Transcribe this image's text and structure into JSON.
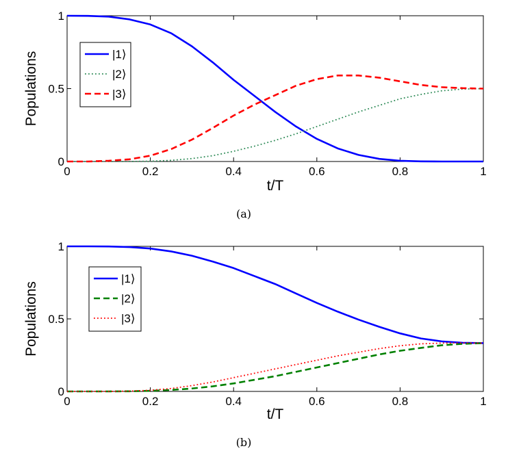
{
  "chart_data": [
    {
      "type": "line",
      "caption": "(a)",
      "xlabel": "t/T",
      "ylabel": "Populations",
      "xlim": [
        0,
        1
      ],
      "ylim": [
        0,
        1
      ],
      "xticks": [
        "0",
        "0.2",
        "0.4",
        "0.6",
        "0.8",
        "1"
      ],
      "yticks": [
        "0",
        "0.5",
        "1"
      ],
      "legend_position": "upper-left",
      "series": [
        {
          "name": "|1⟩",
          "style": "solid",
          "color": "#0000ff",
          "x": [
            0,
            0.05,
            0.1,
            0.15,
            0.2,
            0.25,
            0.3,
            0.35,
            0.4,
            0.45,
            0.5,
            0.55,
            0.6,
            0.65,
            0.7,
            0.75,
            0.8,
            0.85,
            0.9,
            0.95,
            1.0
          ],
          "values": [
            1.0,
            0.999,
            0.994,
            0.975,
            0.94,
            0.88,
            0.79,
            0.68,
            0.56,
            0.45,
            0.34,
            0.24,
            0.155,
            0.09,
            0.045,
            0.018,
            0.005,
            0.001,
            0.0,
            0.0,
            0.0
          ]
        },
        {
          "name": "|2⟩",
          "style": "dotted",
          "color": "#2e8b57",
          "x": [
            0,
            0.05,
            0.1,
            0.15,
            0.2,
            0.25,
            0.3,
            0.35,
            0.4,
            0.45,
            0.5,
            0.55,
            0.6,
            0.65,
            0.7,
            0.75,
            0.8,
            0.85,
            0.9,
            0.95,
            1.0
          ],
          "values": [
            0.0,
            0.0,
            0.0,
            0.0,
            0.002,
            0.008,
            0.02,
            0.04,
            0.07,
            0.105,
            0.145,
            0.19,
            0.24,
            0.29,
            0.34,
            0.385,
            0.43,
            0.46,
            0.485,
            0.497,
            0.5
          ]
        },
        {
          "name": "|3⟩",
          "style": "dashed",
          "color": "#ff0000",
          "x": [
            0,
            0.05,
            0.1,
            0.15,
            0.2,
            0.25,
            0.3,
            0.35,
            0.4,
            0.45,
            0.5,
            0.55,
            0.6,
            0.65,
            0.7,
            0.75,
            0.8,
            0.85,
            0.9,
            0.95,
            1.0
          ],
          "values": [
            0.0,
            0.0,
            0.005,
            0.015,
            0.04,
            0.085,
            0.15,
            0.23,
            0.315,
            0.39,
            0.455,
            0.52,
            0.565,
            0.59,
            0.59,
            0.575,
            0.55,
            0.525,
            0.51,
            0.503,
            0.5
          ]
        }
      ]
    },
    {
      "type": "line",
      "caption": "(b)",
      "xlabel": "t/T",
      "ylabel": "Populations",
      "xlim": [
        0,
        1
      ],
      "ylim": [
        0,
        1
      ],
      "xticks": [
        "0",
        "0.2",
        "0.4",
        "0.6",
        "0.8",
        "1"
      ],
      "yticks": [
        "0",
        "0.5",
        "1"
      ],
      "legend_position": "upper-left",
      "series": [
        {
          "name": "|1⟩",
          "style": "solid",
          "color": "#0000ff",
          "x": [
            0,
            0.05,
            0.1,
            0.15,
            0.2,
            0.25,
            0.3,
            0.35,
            0.4,
            0.45,
            0.5,
            0.55,
            0.6,
            0.65,
            0.7,
            0.75,
            0.8,
            0.85,
            0.9,
            0.95,
            1.0
          ],
          "values": [
            1.0,
            1.0,
            0.999,
            0.995,
            0.985,
            0.965,
            0.935,
            0.895,
            0.85,
            0.795,
            0.74,
            0.675,
            0.61,
            0.55,
            0.495,
            0.445,
            0.4,
            0.365,
            0.345,
            0.335,
            0.333
          ]
        },
        {
          "name": "|2⟩",
          "style": "dashed",
          "color": "#008000",
          "x": [
            0,
            0.05,
            0.1,
            0.15,
            0.2,
            0.25,
            0.3,
            0.35,
            0.4,
            0.45,
            0.5,
            0.55,
            0.6,
            0.65,
            0.7,
            0.75,
            0.8,
            0.85,
            0.9,
            0.95,
            1.0
          ],
          "values": [
            0.0,
            0.0,
            0.0,
            0.001,
            0.004,
            0.01,
            0.02,
            0.035,
            0.055,
            0.08,
            0.105,
            0.135,
            0.165,
            0.195,
            0.225,
            0.255,
            0.28,
            0.3,
            0.318,
            0.328,
            0.333
          ]
        },
        {
          "name": "|3⟩",
          "style": "dotted",
          "color": "#ff0000",
          "x": [
            0,
            0.05,
            0.1,
            0.15,
            0.2,
            0.25,
            0.3,
            0.35,
            0.4,
            0.45,
            0.5,
            0.55,
            0.6,
            0.65,
            0.7,
            0.75,
            0.8,
            0.85,
            0.9,
            0.95,
            1.0
          ],
          "values": [
            0.0,
            0.0,
            0.0,
            0.002,
            0.008,
            0.02,
            0.04,
            0.065,
            0.095,
            0.125,
            0.155,
            0.185,
            0.215,
            0.245,
            0.27,
            0.295,
            0.315,
            0.328,
            0.333,
            0.334,
            0.333
          ]
        }
      ]
    }
  ]
}
